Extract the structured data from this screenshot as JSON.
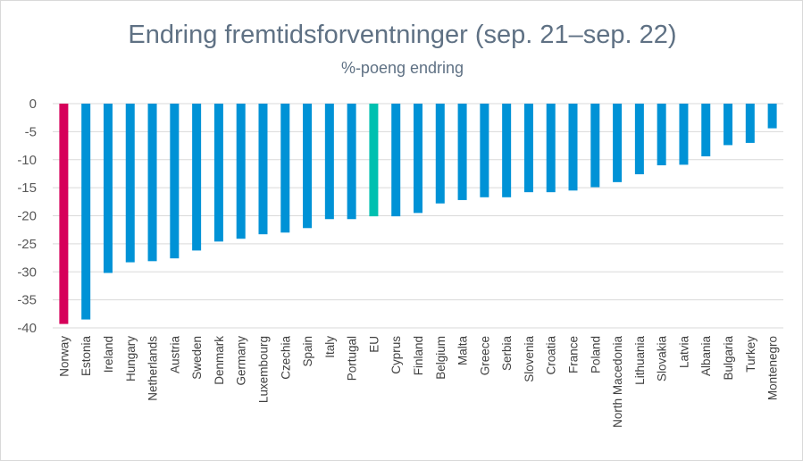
{
  "chart_data": {
    "type": "bar",
    "title": "Endring fremtidsforventninger (sep. 21–sep. 22)",
    "subtitle": "%-poeng endring",
    "xlabel": "",
    "ylabel": "",
    "ylim": [
      -40,
      0
    ],
    "yticks": [
      0,
      -5,
      -10,
      -15,
      -20,
      -25,
      -30,
      -35,
      -40
    ],
    "grid": true,
    "categories": [
      "Norway",
      "Estonia",
      "Ireland",
      "Hungary",
      "Netherlands",
      "Austria",
      "Sweden",
      "Denmark",
      "Germany",
      "Luxembourg",
      "Czechia",
      "Spain",
      "Italy",
      "Portugal",
      "EU",
      "Cyprus",
      "Finland",
      "Belgium",
      "Malta",
      "Greece",
      "Serbia",
      "Slovenia",
      "Croatia",
      "France",
      "Poland",
      "North Macedonia",
      "Lithuania",
      "Slovakia",
      "Latvia",
      "Albania",
      "Bulgaria",
      "Turkey",
      "Montenegro"
    ],
    "values": [
      -39.3,
      -38.5,
      -30.2,
      -28.3,
      -28.1,
      -27.6,
      -26.2,
      -24.6,
      -24.1,
      -23.3,
      -23.0,
      -22.2,
      -20.6,
      -20.6,
      -20.1,
      -20.1,
      -19.5,
      -17.8,
      -17.2,
      -16.7,
      -16.7,
      -15.8,
      -15.8,
      -15.5,
      -14.9,
      -14.0,
      -12.6,
      -11.0,
      -10.9,
      -9.4,
      -7.4,
      -7.0,
      -4.4
    ],
    "colors": {
      "default": "#0092d6",
      "Norway": "#d6005a",
      "EU": "#00c0b0"
    }
  }
}
